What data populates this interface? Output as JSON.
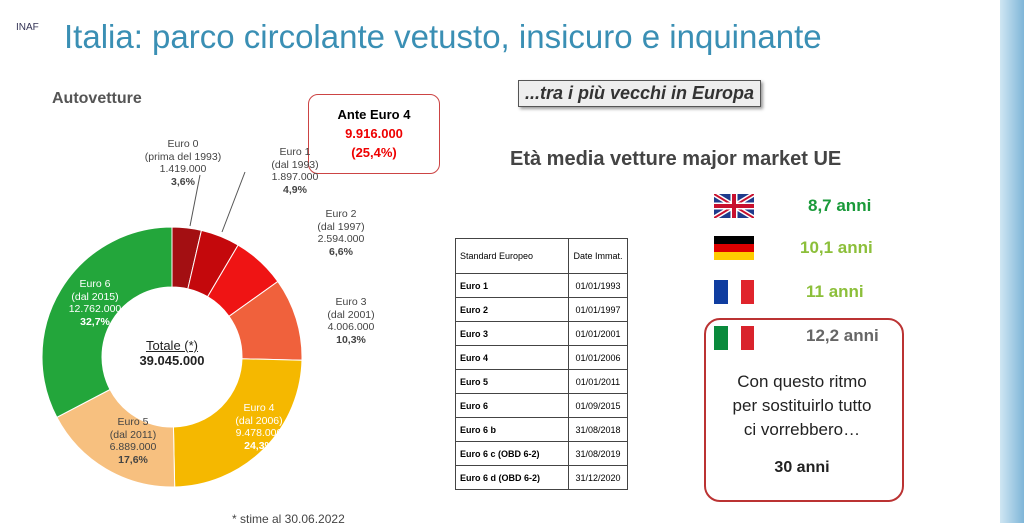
{
  "logo": "INAF",
  "title": "Italia: parco circolante vetusto, insicuro e inquinante",
  "chart_data": {
    "type": "pie",
    "title": "Autovetture",
    "categories": [
      "Euro 0",
      "Euro 1",
      "Euro 2",
      "Euro 3",
      "Euro 4",
      "Euro 5",
      "Euro 6"
    ],
    "sublabels": [
      "(prima del 1993)",
      "(dal 1993)",
      "(dal 1997)",
      "(dal 2001)",
      "(dal 2006)",
      "(dal 2011)",
      "(dal 2015)"
    ],
    "values": [
      1419000,
      1897000,
      2594000,
      4006000,
      9478000,
      6889000,
      12762000
    ],
    "value_labels": [
      "1.419.000",
      "1.897.000",
      "2.594.000",
      "4.006.000",
      "9.478.000",
      "6.889.000",
      "12.762.000"
    ],
    "percent_labels": [
      "3,6%",
      "4,9%",
      "6,6%",
      "10,3%",
      "24,3%",
      "17,6%",
      "32,7%"
    ],
    "colors": [
      "#a30f12",
      "#c4080c",
      "#ef1414",
      "#f0613c",
      "#f5b800",
      "#f7c07f",
      "#23a63b"
    ],
    "total_label": "Totale (*)",
    "total_value_label": "39.045.000",
    "highlight": {
      "label": "Ante Euro 4",
      "value_label": "9.916.000",
      "percent_label": "(25,4%)"
    },
    "footnote": "* stime al 30.06.2022"
  },
  "tagline": "...tra i più vecchi in Europa",
  "age": {
    "title": "Età media vetture major market UE",
    "rows": [
      "8,7 anni",
      "10,1 anni",
      "11 anni",
      "12,2 anni"
    ]
  },
  "callout": {
    "lines": [
      "Con questo ritmo",
      "per sostituirlo tutto",
      "ci vorrebbero…"
    ],
    "result": "30 anni"
  },
  "table": {
    "header": [
      "Standard Europeo",
      "Date Immat."
    ],
    "rows": [
      [
        "Euro 1",
        "01/01/1993"
      ],
      [
        "Euro 2",
        "01/01/1997"
      ],
      [
        "Euro 3",
        "01/01/2001"
      ],
      [
        "Euro 4",
        "01/01/2006"
      ],
      [
        "Euro 5",
        "01/01/2011"
      ],
      [
        "Euro 6",
        "01/09/2015"
      ],
      [
        "Euro 6 b",
        "31/08/2018"
      ],
      [
        "Euro 6 c (OBD 6-2)",
        "31/08/2019"
      ],
      [
        "Euro 6 d (OBD 6-2)",
        "31/12/2020"
      ]
    ]
  }
}
